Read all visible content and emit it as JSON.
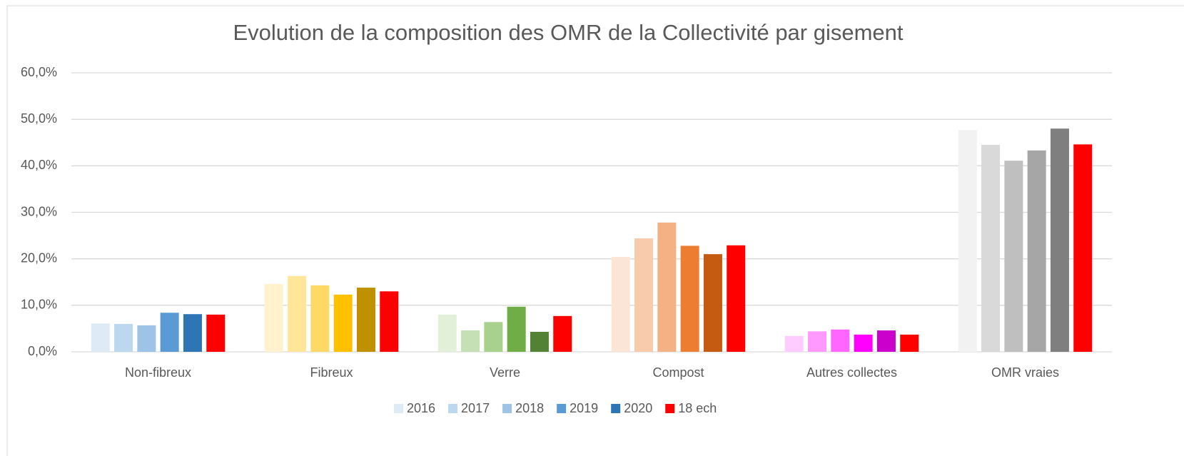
{
  "chart_data": {
    "type": "bar",
    "title": "Evolution de la composition des OMR de la Collectivité par gisement",
    "categories": [
      "Non-fibreux",
      "Fibreux",
      "Verre",
      "Compost",
      "Autres collectes",
      "OMR vraies"
    ],
    "series": [
      {
        "name": "2016",
        "color": "#deebf7",
        "colors": [
          "#deebf7",
          "#fff2cc",
          "#e2f0d9",
          "#fbe5d6",
          "#ffccff",
          "#f2f2f2"
        ],
        "values": [
          6.1,
          14.6,
          8.0,
          20.4,
          3.4,
          47.7
        ]
      },
      {
        "name": "2017",
        "color": "#bdd7ee",
        "colors": [
          "#bdd7ee",
          "#ffe699",
          "#c5e0b4",
          "#f8cbad",
          "#ff99ff",
          "#d9d9d9"
        ],
        "values": [
          6.0,
          16.3,
          4.6,
          24.4,
          4.4,
          44.5
        ]
      },
      {
        "name": "2018",
        "color": "#9dc3e6",
        "colors": [
          "#9dc3e6",
          "#ffd966",
          "#a9d18e",
          "#f4b183",
          "#ff66ff",
          "#bfbfbf"
        ],
        "values": [
          5.7,
          14.3,
          6.4,
          27.8,
          4.8,
          41.1
        ]
      },
      {
        "name": "2019",
        "color": "#5b9bd5",
        "colors": [
          "#5b9bd5",
          "#ffc000",
          "#70ad47",
          "#ed7d31",
          "#ff00ff",
          "#a6a6a6"
        ],
        "values": [
          8.4,
          12.3,
          9.7,
          22.8,
          3.7,
          43.3
        ]
      },
      {
        "name": "2020",
        "color": "#2e75b6",
        "colors": [
          "#2e75b6",
          "#bf9000",
          "#548235",
          "#c55a11",
          "#cc00cc",
          "#7f7f7f"
        ],
        "values": [
          8.1,
          13.8,
          4.3,
          21.0,
          4.6,
          48.0
        ]
      },
      {
        "name": "18 ech",
        "color": "#ff0000",
        "colors": [
          "#ff0000",
          "#ff0000",
          "#ff0000",
          "#ff0000",
          "#ff0000",
          "#ff0000"
        ],
        "values": [
          8.0,
          13.0,
          7.7,
          22.9,
          3.7,
          44.6
        ]
      }
    ],
    "ylim": [
      0,
      60
    ],
    "yticks": [
      {
        "value": 0,
        "label": "0,0%"
      },
      {
        "value": 10,
        "label": "10,0%"
      },
      {
        "value": 20,
        "label": "20,0%"
      },
      {
        "value": 30,
        "label": "30,0%"
      },
      {
        "value": 40,
        "label": "40,0%"
      },
      {
        "value": 50,
        "label": "50,0%"
      },
      {
        "value": 60,
        "label": "60,0%"
      }
    ],
    "grid": true,
    "legend": "bottom"
  }
}
